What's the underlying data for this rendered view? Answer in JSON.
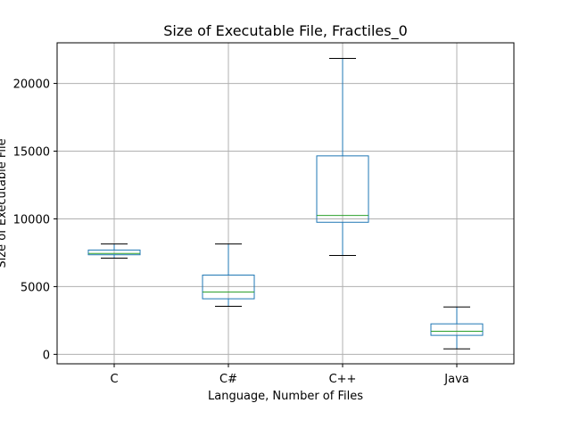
{
  "chart_data": {
    "type": "boxplot",
    "title": "Size of Executable File, Fractiles_0",
    "xlabel": "Language, Number of Files",
    "ylabel": "Size of Executable File",
    "ylim": [
      -700,
      23000
    ],
    "yticks": [
      0,
      5000,
      10000,
      15000,
      20000
    ],
    "ytick_labels": [
      "0",
      "5000",
      "10000",
      "15000",
      "20000"
    ],
    "grid": true,
    "colors": {
      "box": "#1f77b4",
      "median": "#2ca02c",
      "cap": "#000000",
      "grid": "#b0b0b0"
    },
    "categories": [
      "C",
      "C#",
      "C++",
      "Java"
    ],
    "boxes": [
      {
        "label": "C",
        "whisker_low": 7100,
        "q1": 7350,
        "median": 7450,
        "q3": 7700,
        "whisker_high": 8150
      },
      {
        "label": "C#",
        "whisker_low": 3550,
        "q1": 4100,
        "median": 4600,
        "q3": 5850,
        "whisker_high": 8150
      },
      {
        "label": "C++",
        "whisker_low": 7300,
        "q1": 9750,
        "median": 10250,
        "q3": 14650,
        "whisker_high": 21850
      },
      {
        "label": "Java",
        "whisker_low": 400,
        "q1": 1400,
        "median": 1700,
        "q3": 2250,
        "whisker_high": 3500
      }
    ]
  }
}
